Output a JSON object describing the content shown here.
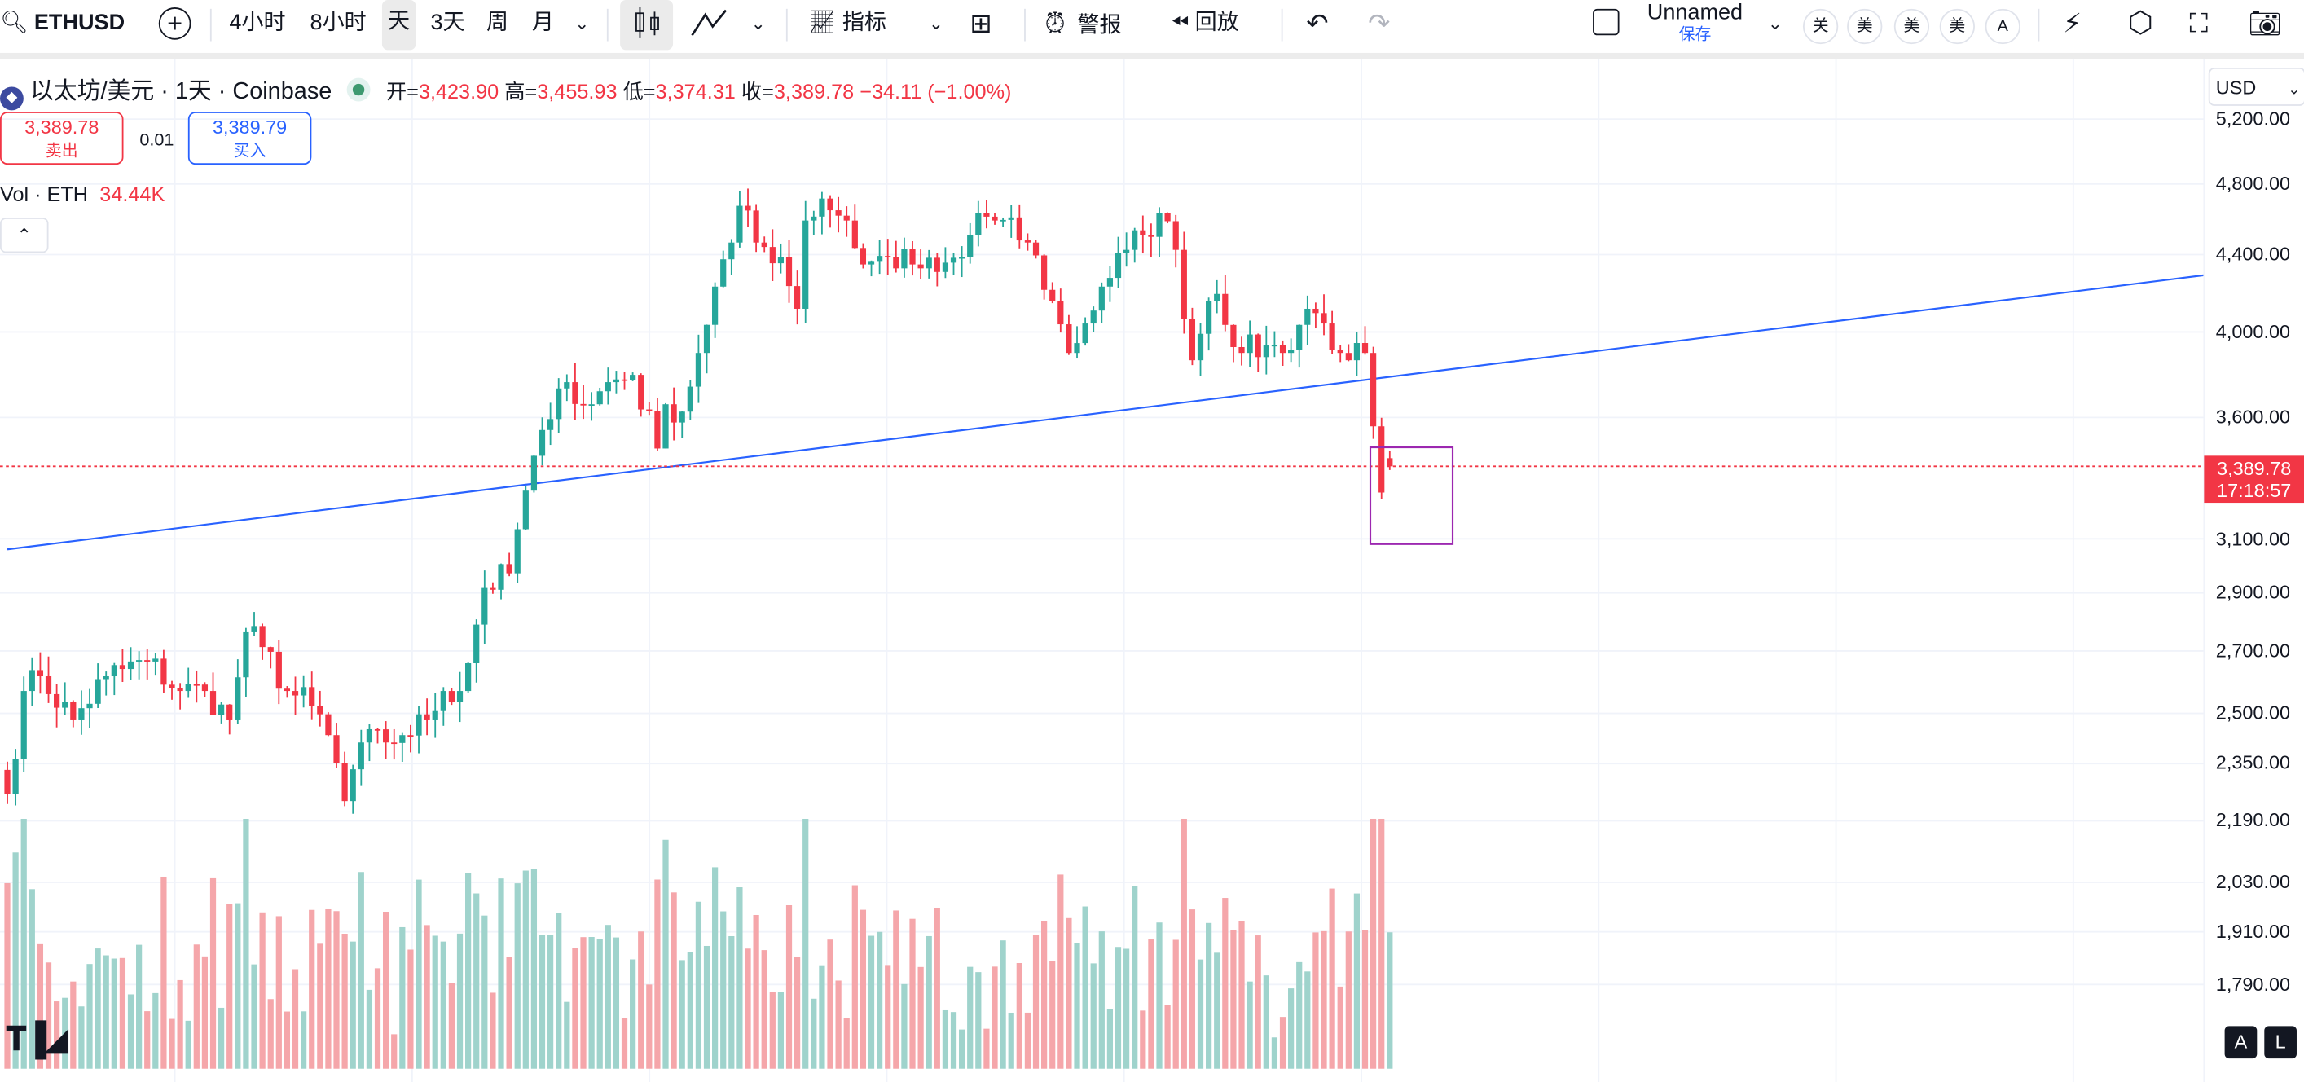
{
  "toolbar": {
    "symbol": "ETHUSD",
    "intervals": [
      "4小时",
      "8小时",
      "天",
      "3天",
      "周",
      "月"
    ],
    "active_interval": "天",
    "indicators_label": "指标",
    "alert_label": "警报",
    "replay_label": "回放",
    "layout_name": "Unnamed",
    "save_label": "保存",
    "chips": [
      "关",
      "美",
      "美",
      "美",
      "A"
    ]
  },
  "legend": {
    "title": "以太坊/美元 · 1天 · Coinbase",
    "open_label": "开=",
    "open": "3,423.90",
    "high_label": "高=",
    "high": "3,455.93",
    "low_label": "低=",
    "low": "3,374.31",
    "close_label": "收=",
    "close": "3,389.78",
    "change": "−34.11 (−1.00%)"
  },
  "trade": {
    "sell_price": "3,389.78",
    "sell_label": "卖出",
    "spread": "0.01",
    "buy_price": "3,389.79",
    "buy_label": "买入"
  },
  "volume_legend": {
    "label": "Vol · ETH",
    "value": "34.44K"
  },
  "price_axis": {
    "currency": "USD",
    "current_price": "3,389.78",
    "countdown": "17:18:57"
  },
  "bottom_buttons": [
    "A",
    "L"
  ],
  "colors": {
    "up": "#26a69a",
    "down": "#f23645",
    "trendline": "#2962ff",
    "box": "#9c27b0",
    "up_vol": "#9fd3cc",
    "down_vol": "#f5a6aa"
  },
  "chart_data": {
    "type": "candlestick",
    "scale": "log",
    "y_ticks": [
      5200,
      4800,
      4400,
      4000,
      3600,
      3100,
      2900,
      2700,
      2500,
      2350,
      2190,
      2030,
      1910,
      1790
    ],
    "y_tick_labels": [
      "5,200.00",
      "4,800.00",
      "4,400.00",
      "4,000.00",
      "3,600.00",
      "3,100.00",
      "2,900.00",
      "2,700.00",
      "2,500.00",
      "2,350.00",
      "2,190.00",
      "2,030.00",
      "1,910.00",
      "1,790.00"
    ],
    "close_anchors": [
      [
        0,
        2264
      ],
      [
        2,
        2570
      ],
      [
        4,
        2617
      ],
      [
        8,
        2479
      ],
      [
        12,
        2617
      ],
      [
        17,
        2665
      ],
      [
        21,
        2570
      ],
      [
        24,
        2570
      ],
      [
        27,
        2479
      ],
      [
        29,
        2763
      ],
      [
        31,
        2713
      ],
      [
        34,
        2570
      ],
      [
        37,
        2524
      ],
      [
        39,
        2434
      ],
      [
        41,
        2244
      ],
      [
        43,
        2412
      ],
      [
        46,
        2412
      ],
      [
        48,
        2434
      ],
      [
        51,
        2479
      ],
      [
        53,
        2570
      ],
      [
        55,
        2570
      ],
      [
        58,
        2918
      ],
      [
        61,
        2971
      ],
      [
        62,
        3137
      ],
      [
        64,
        3434
      ],
      [
        66,
        3593
      ],
      [
        68,
        3760
      ],
      [
        71,
        3659
      ],
      [
        73,
        3760
      ],
      [
        76,
        3794
      ],
      [
        79,
        3465
      ],
      [
        80,
        3659
      ],
      [
        82,
        3626
      ],
      [
        84,
        3898
      ],
      [
        86,
        4230
      ],
      [
        88,
        4466
      ],
      [
        89,
        4673
      ],
      [
        91,
        4466
      ],
      [
        94,
        4386
      ],
      [
        96,
        4116
      ],
      [
        97,
        4589
      ],
      [
        99,
        4715
      ],
      [
        102,
        4589
      ],
      [
        104,
        4347
      ],
      [
        107,
        4386
      ],
      [
        110,
        4347
      ],
      [
        113,
        4307
      ],
      [
        116,
        4386
      ],
      [
        118,
        4631
      ],
      [
        120,
        4589
      ],
      [
        124,
        4466
      ],
      [
        127,
        4154
      ],
      [
        129,
        3898
      ],
      [
        131,
        4042
      ],
      [
        133,
        4230
      ],
      [
        136,
        4426
      ],
      [
        138,
        4507
      ],
      [
        140,
        4631
      ],
      [
        142,
        4426
      ],
      [
        144,
        3863
      ],
      [
        146,
        4154
      ],
      [
        147,
        4192
      ],
      [
        150,
        3898
      ],
      [
        153,
        3934
      ],
      [
        155,
        3898
      ],
      [
        158,
        4116
      ],
      [
        160,
        4042
      ],
      [
        162,
        3898
      ],
      [
        163,
        3863
      ],
      [
        165,
        3898
      ],
      [
        166,
        3561
      ],
      [
        167,
        3282
      ],
      [
        168,
        3389.78
      ]
    ],
    "last_candle": {
      "open": 3423.9,
      "high": 3455.93,
      "low": 3374.31,
      "close": 3389.78
    },
    "trendline": {
      "from": [
        0,
        3060
      ],
      "to": [
        267,
        4290
      ]
    },
    "box": {
      "from_index": 166,
      "to_index": 176,
      "price_top": 3470,
      "price_bottom": 3080
    }
  }
}
